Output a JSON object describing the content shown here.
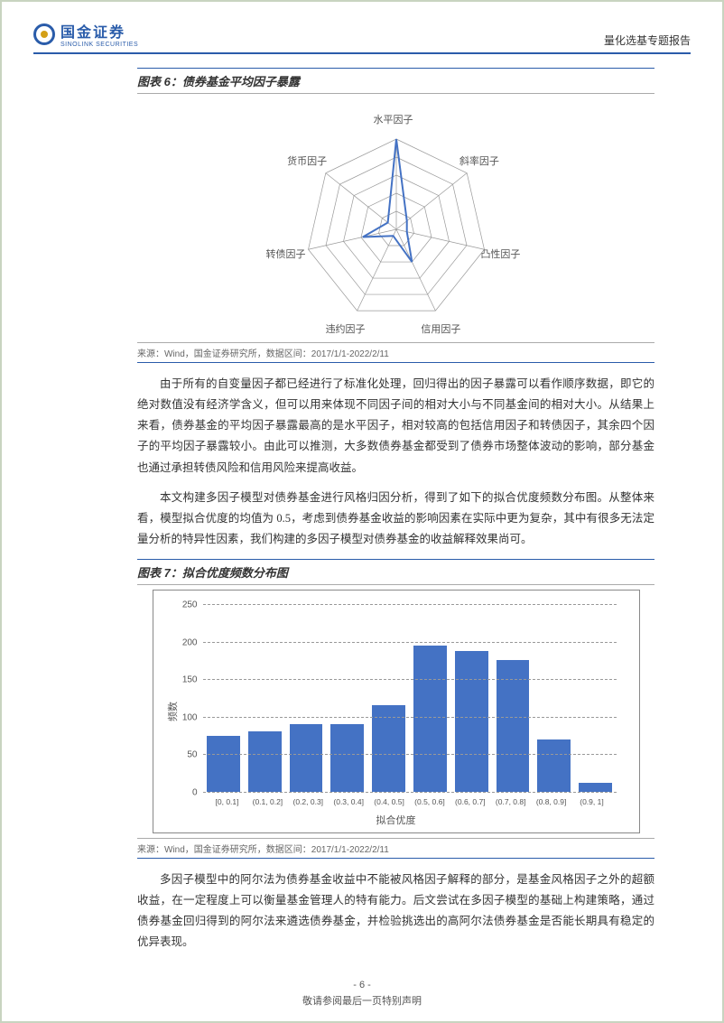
{
  "header": {
    "logo_cn": "国金证券",
    "logo_en": "SINOLINK SECURITIES",
    "report_type": "量化选基专题报告"
  },
  "figure6": {
    "title": "图表 6：债券基金平均因子暴露",
    "source": "来源：Wind，国金证券研究所，数据区间：2017/1/1-2022/2/11",
    "radar": {
      "axes": [
        "水平因子",
        "斜率因子",
        "凸性因子",
        "信用因子",
        "违约因子",
        "转债因子",
        "货币因子"
      ],
      "values": [
        1.0,
        0.15,
        0.12,
        0.4,
        0.08,
        0.38,
        0.12
      ],
      "rings": 5,
      "line_color": "#4472c4",
      "grid_color": "#999999",
      "label_fontsize": 11
    }
  },
  "para1": "由于所有的自变量因子都已经进行了标准化处理，回归得出的因子暴露可以看作顺序数据，即它的绝对数值没有经济学含义，但可以用来体现不同因子间的相对大小与不同基金间的相对大小。从结果上来看，债券基金的平均因子暴露最高的是水平因子，相对较高的包括信用因子和转债因子，其余四个因子的平均因子暴露较小。由此可以推测，大多数债券基金都受到了债券市场整体波动的影响，部分基金也通过承担转债风险和信用风险来提高收益。",
  "para2": "本文构建多因子模型对债券基金进行风格归因分析，得到了如下的拟合优度频数分布图。从整体来看，模型拟合优度的均值为 0.5，考虑到债券基金收益的影响因素在实际中更为复杂，其中有很多无法定量分析的特异性因素，我们构建的多因子模型对债券基金的收益解释效果尚可。",
  "figure7": {
    "title": "图表 7：拟合优度频数分布图",
    "source": "来源：Wind，国金证券研究所，数据区间：2017/1/1-2022/2/11",
    "histogram": {
      "type": "bar",
      "categories": [
        "[0, 0.1]",
        "(0.1, 0.2]",
        "(0.2, 0.3]",
        "(0.3, 0.4]",
        "(0.4, 0.5]",
        "(0.5, 0.6]",
        "(0.6, 0.7]",
        "(0.7, 0.8]",
        "(0.8, 0.9]",
        "(0.9, 1]"
      ],
      "values": [
        75,
        80,
        90,
        90,
        115,
        195,
        188,
        175,
        70,
        12
      ],
      "bar_color": "#4472c4",
      "ylabel": "频数",
      "xlabel": "拟合优度",
      "ylim": [
        0,
        250
      ],
      "ytick_step": 50,
      "yticks": [
        0,
        50,
        100,
        150,
        200,
        250
      ],
      "grid_color": "#999999",
      "background_color": "#ffffff",
      "border_color": "#888888",
      "label_fontsize": 10
    }
  },
  "para3": "多因子模型中的阿尔法为债券基金收益中不能被风格因子解释的部分，是基金风格因子之外的超额收益，在一定程度上可以衡量基金管理人的特有能力。后文尝试在多因子模型的基础上构建策略，通过债券基金回归得到的阿尔法来遴选债券基金，并检验挑选出的高阿尔法债券基金是否能长期具有稳定的优异表现。",
  "footer": {
    "pagenum": "- 6 -",
    "disclaimer": "敬请参阅最后一页特别声明"
  }
}
